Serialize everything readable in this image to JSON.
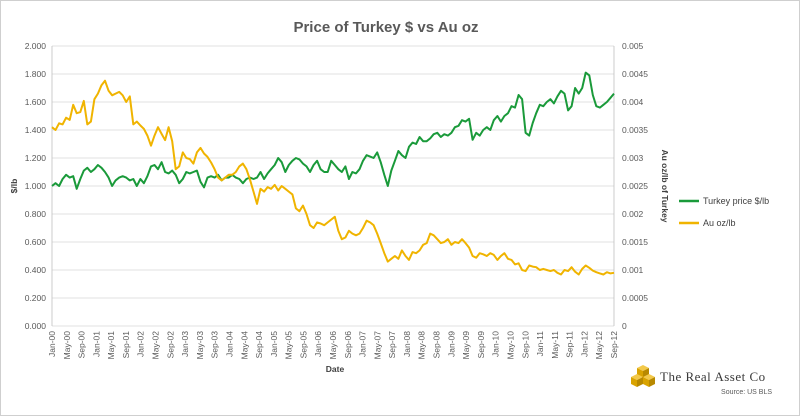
{
  "chart_data": {
    "type": "line",
    "title": "Price of Turkey $ vs Au oz",
    "xlabel": "Date",
    "ylabel_left": "$/lb",
    "ylabel_right": "Au oz/lb of Turkey",
    "ylim_left": [
      0,
      2.0
    ],
    "ylim_right": [
      0,
      0.005
    ],
    "yticks_left": [
      "0.000",
      "0.200",
      "0.400",
      "0.600",
      "0.800",
      "1.000",
      "1.200",
      "1.400",
      "1.600",
      "1.800",
      "2.000"
    ],
    "yticks_right": [
      "0",
      "0.0005",
      "0.001",
      "0.0015",
      "0.002",
      "0.0025",
      "0.003",
      "0.0035",
      "0.004",
      "0.0045",
      "0.005"
    ],
    "xticks": [
      "Jan-00",
      "May-00",
      "Sep-00",
      "Jan-01",
      "May-01",
      "Sep-01",
      "Jan-02",
      "May-02",
      "Sep-02",
      "Jan-03",
      "May-03",
      "Sep-03",
      "Jan-04",
      "May-04",
      "Sep-04",
      "Jan-05",
      "May-05",
      "Sep-05",
      "Jan-06",
      "May-06",
      "Sep-06",
      "Jan-07",
      "May-07",
      "Sep-07",
      "Jan-08",
      "May-08",
      "Sep-08",
      "Jan-09",
      "May-09",
      "Sep-09",
      "Jan-10",
      "May-10",
      "Sep-10",
      "Jan-11",
      "May-11",
      "Sep-11",
      "Jan-12",
      "May-12",
      "Sep-12"
    ],
    "grid": true,
    "legend_position": "right",
    "series": [
      {
        "name": "Turkey price $/lb",
        "axis": "left",
        "color": "#1a9a3a",
        "values": [
          1.0,
          1.02,
          1.0,
          1.05,
          1.08,
          1.06,
          1.07,
          0.98,
          1.05,
          1.11,
          1.13,
          1.1,
          1.12,
          1.15,
          1.13,
          1.1,
          1.06,
          1.0,
          1.04,
          1.06,
          1.07,
          1.06,
          1.04,
          1.05,
          1.0,
          1.05,
          1.02,
          1.07,
          1.14,
          1.15,
          1.12,
          1.17,
          1.1,
          1.09,
          1.11,
          1.08,
          1.02,
          1.05,
          1.1,
          1.09,
          1.1,
          1.11,
          1.03,
          0.99,
          1.06,
          1.07,
          1.06,
          1.08,
          1.04,
          1.06,
          1.06,
          1.08,
          1.06,
          1.05,
          1.02,
          1.05,
          1.06,
          1.05,
          1.06,
          1.1,
          1.05,
          1.09,
          1.12,
          1.15,
          1.2,
          1.17,
          1.1,
          1.15,
          1.18,
          1.2,
          1.19,
          1.16,
          1.14,
          1.1,
          1.15,
          1.18,
          1.12,
          1.1,
          1.1,
          1.18,
          1.15,
          1.12,
          1.1,
          1.14,
          1.05,
          1.1,
          1.09,
          1.12,
          1.18,
          1.22,
          1.21,
          1.2,
          1.24,
          1.17,
          1.08,
          1.0,
          1.11,
          1.18,
          1.25,
          1.22,
          1.2,
          1.28,
          1.31,
          1.3,
          1.35,
          1.32,
          1.32,
          1.34,
          1.37,
          1.38,
          1.35,
          1.37,
          1.36,
          1.38,
          1.42,
          1.43,
          1.47,
          1.46,
          1.48,
          1.33,
          1.38,
          1.36,
          1.4,
          1.42,
          1.4,
          1.47,
          1.5,
          1.46,
          1.5,
          1.52,
          1.57,
          1.56,
          1.65,
          1.62,
          1.38,
          1.36,
          1.45,
          1.52,
          1.58,
          1.57,
          1.6,
          1.62,
          1.59,
          1.64,
          1.68,
          1.66,
          1.54,
          1.57,
          1.7,
          1.66,
          1.7,
          1.81,
          1.79,
          1.65,
          1.57,
          1.56,
          1.58,
          1.6,
          1.63,
          1.66
        ]
      },
      {
        "name": "Au oz/lb",
        "axis": "right",
        "color": "#f0b400",
        "values": [
          0.00355,
          0.0035,
          0.00362,
          0.0036,
          0.00372,
          0.00368,
          0.00395,
          0.0038,
          0.00382,
          0.00402,
          0.0036,
          0.00365,
          0.00405,
          0.00415,
          0.0043,
          0.00438,
          0.0042,
          0.00412,
          0.00415,
          0.00418,
          0.00412,
          0.004,
          0.0041,
          0.0036,
          0.00365,
          0.00358,
          0.00352,
          0.0034,
          0.00322,
          0.0034,
          0.00355,
          0.00343,
          0.00332,
          0.00355,
          0.0033,
          0.0028,
          0.00285,
          0.0031,
          0.003,
          0.00298,
          0.0029,
          0.0031,
          0.00318,
          0.00308,
          0.00302,
          0.00292,
          0.0028,
          0.00265,
          0.0026,
          0.00265,
          0.0027,
          0.0027,
          0.00275,
          0.00285,
          0.0029,
          0.0028,
          0.00262,
          0.0024,
          0.00218,
          0.00245,
          0.0024,
          0.00248,
          0.00245,
          0.00252,
          0.00242,
          0.0025,
          0.00245,
          0.0024,
          0.00235,
          0.0021,
          0.00205,
          0.00215,
          0.002,
          0.0018,
          0.00175,
          0.00185,
          0.00183,
          0.0018,
          0.00185,
          0.0019,
          0.00195,
          0.0017,
          0.00155,
          0.00158,
          0.0017,
          0.00165,
          0.00162,
          0.00165,
          0.00175,
          0.00188,
          0.00185,
          0.0018,
          0.00165,
          0.00148,
          0.0013,
          0.00115,
          0.0012,
          0.00125,
          0.0012,
          0.00135,
          0.00125,
          0.00118,
          0.00132,
          0.0013,
          0.00135,
          0.00145,
          0.00148,
          0.00165,
          0.00162,
          0.00155,
          0.00148,
          0.0015,
          0.00155,
          0.00145,
          0.0015,
          0.00148,
          0.00155,
          0.00148,
          0.0014,
          0.00125,
          0.00122,
          0.0013,
          0.00128,
          0.00125,
          0.0013,
          0.00127,
          0.00118,
          0.00125,
          0.0013,
          0.0012,
          0.00118,
          0.0011,
          0.00112,
          0.001,
          0.00098,
          0.00108,
          0.00106,
          0.00105,
          0.001,
          0.00102,
          0.001,
          0.00098,
          0.001,
          0.00095,
          0.00092,
          0.001,
          0.00098,
          0.00105,
          0.00097,
          0.00092,
          0.00102,
          0.00108,
          0.00104,
          0.00099,
          0.00096,
          0.00094,
          0.00092,
          0.00096,
          0.00094,
          0.00095
        ]
      }
    ]
  },
  "footer": {
    "brand": "The Real Asset Co",
    "source": "Source: US BLS"
  }
}
